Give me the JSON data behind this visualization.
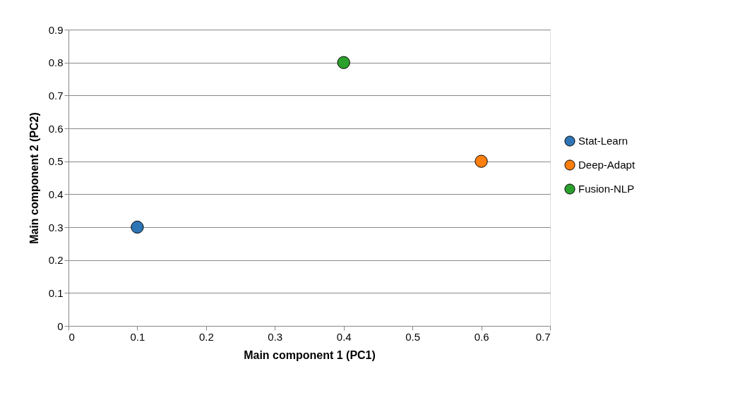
{
  "chart_data": {
    "type": "scatter",
    "xlabel": "Main component 1 (PC1)",
    "ylabel": "Main component 2 (PC2)",
    "series": [
      {
        "name": "Stat-Learn",
        "color": "#2e75b6",
        "x": [
          0.1
        ],
        "values": [
          0.3
        ]
      },
      {
        "name": "Deep-Adapt",
        "color": "#ff7f0e",
        "x": [
          0.6
        ],
        "values": [
          0.5
        ]
      },
      {
        "name": "Fusion-NLP",
        "color": "#2ca02c",
        "x": [
          0.4
        ],
        "values": [
          0.8
        ]
      }
    ],
    "xlim": [
      0,
      0.7
    ],
    "xticks": [
      0,
      0.1,
      0.2,
      0.3,
      0.4,
      0.5,
      0.6,
      0.7
    ],
    "ylim": [
      0,
      0.9
    ],
    "yticks": [
      0,
      0.1,
      0.2,
      0.3,
      0.4,
      0.5,
      0.6,
      0.7,
      0.8,
      0.9
    ],
    "grid": "y",
    "legend": "right",
    "marker": "circle"
  }
}
